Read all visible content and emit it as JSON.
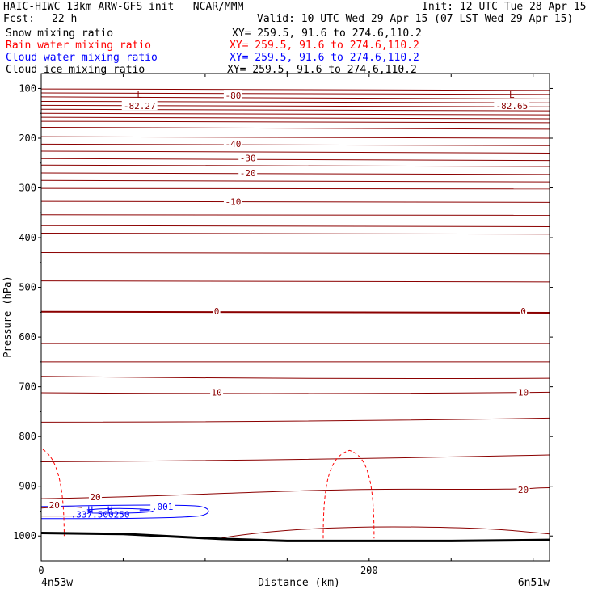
{
  "header": {
    "title_left": "HAIC-HIWC 13km ARW-GFS init   NCAR/MMM",
    "init": "Init: 12 UTC Tue 28 Apr 15",
    "fcst_label": "Fcst:",
    "fcst_value": "22 h",
    "valid": "Valid: 10 UTC Wed 29 Apr 15 (07 LST Wed 29 Apr 15)"
  },
  "fields": [
    {
      "name": "Snow mixing ratio",
      "xy": "XY= 259.5, 91.6 to 274.6,110.2",
      "color": "#000000"
    },
    {
      "name": "Rain water mixing ratio",
      "xy": "XY= 259.5, 91.6 to 274.6,110.2",
      "color": "#ff0000"
    },
    {
      "name": "Cloud water mixing ratio",
      "xy": "XY= 259.5, 91.6 to 274.6,110.2",
      "color": "#0000ff"
    },
    {
      "name": "Cloud ice mixing ratio",
      "xy": "XY= 259.5, 91.6 to 274.6,110.2",
      "color": "#000000"
    }
  ],
  "chart_data": {
    "type": "cross-section contour",
    "xlabel": "Distance (km)",
    "ylabel": "Pressure (hPa)",
    "x_ticks": [
      0,
      200
    ],
    "y_ticks": [
      100,
      200,
      300,
      400,
      500,
      600,
      700,
      800,
      900,
      1000
    ],
    "xlim": [
      0,
      310
    ],
    "ylim": [
      1050,
      70
    ],
    "left_endpoint": "4n53w",
    "right_endpoint": "6n51w",
    "temperature_color": "#8b0000",
    "temperature_labels": [
      {
        "text": "-80",
        "x": 117,
        "p": 114
      },
      {
        "text": "-40",
        "x": 117,
        "p": 211
      },
      {
        "text": "-30",
        "x": 126,
        "p": 240
      },
      {
        "text": "-20",
        "x": 126,
        "p": 270
      },
      {
        "text": "-10",
        "x": 117,
        "p": 328
      },
      {
        "text": "0",
        "x": 107,
        "p": 548
      },
      {
        "text": "0",
        "x": 294,
        "p": 548
      },
      {
        "text": "10",
        "x": 107,
        "p": 711
      },
      {
        "text": "10",
        "x": 294,
        "p": 711
      },
      {
        "text": "20",
        "x": 33,
        "p": 922
      },
      {
        "text": "20",
        "x": 294,
        "p": 907
      },
      {
        "text": "20",
        "x": 8,
        "p": 938
      }
    ],
    "extrema": [
      {
        "marker": "L",
        "value": "-82.27",
        "x": 60,
        "p": 93
      },
      {
        "marker": "L",
        "value": "-82.65",
        "x": 287,
        "p": 93
      }
    ],
    "cloud_water": {
      "labels": [
        ".001"
      ],
      "markers": [
        "H",
        "H"
      ],
      "max_values_text": ".337.500250"
    }
  }
}
